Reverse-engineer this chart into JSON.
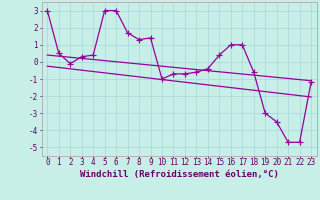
{
  "xlabel": "Windchill (Refroidissement éolien,°C)",
  "background_color": "#c8eee8",
  "line_color": "#990099",
  "grid_color": "#aadddd",
  "xlim": [
    -0.5,
    23.5
  ],
  "ylim": [
    -5.5,
    3.5
  ],
  "yticks": [
    -5,
    -4,
    -3,
    -2,
    -1,
    0,
    1,
    2,
    3
  ],
  "xticks": [
    0,
    1,
    2,
    3,
    4,
    5,
    6,
    7,
    8,
    9,
    10,
    11,
    12,
    13,
    14,
    15,
    16,
    17,
    18,
    19,
    20,
    21,
    22,
    23
  ],
  "xtick_labels": [
    "0",
    "1",
    "2",
    "3",
    "4",
    "5",
    "6",
    "7",
    "8",
    "9",
    "10",
    "11",
    "12",
    "13",
    "14",
    "15",
    "16",
    "17",
    "18",
    "19",
    "20",
    "21",
    "22",
    "23"
  ],
  "main_x": [
    0,
    1,
    2,
    3,
    4,
    5,
    6,
    7,
    8,
    9,
    10,
    11,
    12,
    13,
    14,
    15,
    16,
    17,
    18,
    19,
    20,
    21,
    22,
    23
  ],
  "main_y": [
    3.0,
    0.5,
    -0.1,
    0.3,
    0.4,
    3.0,
    3.0,
    1.7,
    1.3,
    1.4,
    -1.0,
    -0.7,
    -0.7,
    -0.6,
    -0.4,
    0.4,
    1.0,
    1.0,
    -0.6,
    -3.0,
    -3.5,
    -4.7,
    -4.7,
    -1.2
  ],
  "line1_x": [
    0,
    23
  ],
  "line1_y": [
    0.4,
    -1.1
  ],
  "line2_x": [
    0,
    23
  ],
  "line2_y": [
    -0.25,
    -2.05
  ],
  "marker": "+",
  "markersize": 4,
  "linewidth": 0.9,
  "tick_fontsize": 5.5,
  "label_fontsize": 6.5
}
